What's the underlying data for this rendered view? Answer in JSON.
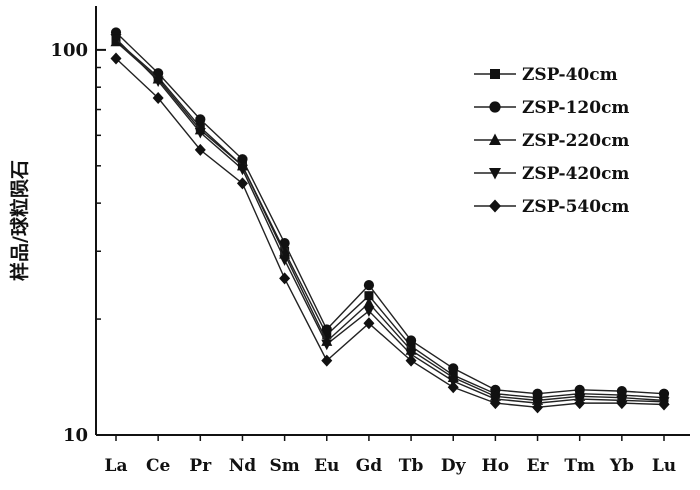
{
  "chart_data": {
    "type": "line",
    "title": "",
    "xlabel": "",
    "ylabel": "样品/球粒陨石",
    "y_scale": "log",
    "ylim": [
      10,
      130
    ],
    "y_ticks": [
      {
        "value": 10,
        "label": "10"
      },
      {
        "value": 100,
        "label": "100"
      }
    ],
    "categories": [
      "La",
      "Ce",
      "Pr",
      "Nd",
      "Sm",
      "Eu",
      "Gd",
      "Tb",
      "Dy",
      "Ho",
      "Er",
      "Tm",
      "Yb",
      "Lu"
    ],
    "legend_position": "top-right",
    "series": [
      {
        "name": "ZSP-40cm",
        "marker": "square",
        "values": [
          106,
          85,
          63,
          50,
          30,
          18.2,
          23,
          17,
          14.3,
          12.8,
          12.5,
          12.8,
          12.7,
          12.5
        ]
      },
      {
        "name": "ZSP-120cm",
        "marker": "circle",
        "values": [
          111,
          87,
          66,
          52,
          31.5,
          18.8,
          24.5,
          17.6,
          14.9,
          13.1,
          12.8,
          13.1,
          13.0,
          12.8
        ]
      },
      {
        "name": "ZSP-220cm",
        "marker": "triangle-up",
        "values": [
          105,
          84,
          62,
          50,
          29.5,
          17.5,
          22,
          16.6,
          14.1,
          12.6,
          12.3,
          12.6,
          12.5,
          12.3
        ]
      },
      {
        "name": "ZSP-420cm",
        "marker": "triangle-down",
        "values": [
          107,
          83,
          61,
          49,
          28.5,
          17.2,
          21,
          16.2,
          13.8,
          12.4,
          12.1,
          12.4,
          12.3,
          12.2
        ]
      },
      {
        "name": "ZSP-540cm",
        "marker": "diamond",
        "values": [
          95,
          75,
          55,
          45,
          25.5,
          15.6,
          19.5,
          15.6,
          13.3,
          12.1,
          11.8,
          12.1,
          12.1,
          12.0
        ]
      }
    ]
  }
}
